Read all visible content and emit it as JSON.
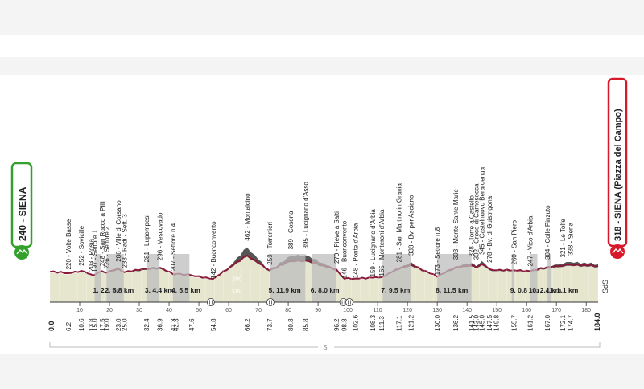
{
  "chart_data": {
    "type": "area",
    "title": "",
    "xlabel": "",
    "ylabel": "",
    "xlim": [
      0,
      184
    ],
    "ylim": [
      0,
      600
    ],
    "x_axis_ticks": [
      10,
      20,
      30,
      40,
      50,
      60,
      70,
      80,
      90,
      100,
      110,
      120,
      130,
      140,
      150,
      160,
      170,
      180
    ],
    "y_axis_ticks": [
      100,
      200
    ],
    "start": {
      "label": "240 - SIENA",
      "km": "0.0"
    },
    "finish": {
      "label": "318 - SIENA (Piazza del Campo)",
      "km": "184.0"
    },
    "sds_label": "SdS",
    "si_label": "SI",
    "points": [
      {
        "km": 0.0,
        "alt": 240
      },
      {
        "km": 6.2,
        "alt": 220,
        "label": "220 - Volte Basse",
        "distance": "6.2"
      },
      {
        "km": 10.6,
        "alt": 252,
        "label": "252 - Sovicille",
        "distance": "10.6"
      },
      {
        "km": 13.8,
        "alt": 203,
        "label": "203 - Rosia",
        "distance": "13.8"
      },
      {
        "km": 15.0,
        "alt": 197,
        "label": "197 - Settore 1",
        "distance": "15.0"
      },
      {
        "km": 17.5,
        "alt": 248,
        "label": "248 - San Rocco a Pilli",
        "distance": "17.5"
      },
      {
        "km": 19.0,
        "alt": 226,
        "label": "226 - Settore 2",
        "distance": "19.0"
      },
      {
        "km": 23.0,
        "alt": 286,
        "label": "286 - Ville di Corsano",
        "distance": "23.0"
      },
      {
        "km": 25.0,
        "alt": 233,
        "label": "233 - Radi - Sett. 3",
        "distance": "25.0"
      },
      {
        "km": 32.4,
        "alt": 281,
        "label": "281 - Lupompesi",
        "distance": "32.4"
      },
      {
        "km": 36.9,
        "alt": 296,
        "label": "296 - Vescovado",
        "distance": "36.9"
      },
      {
        "km": 41.3,
        "alt": 207,
        "label": "207 - Settore n.4",
        "distance": "41.3"
      },
      {
        "km": 42.3,
        "alt": 210
      },
      {
        "km": 47.6,
        "alt": 190
      },
      {
        "km": 54.8,
        "alt": 142,
        "label": "142 - Buonconvento",
        "distance": "54.8"
      },
      {
        "km": 66.2,
        "alt": 462,
        "label": "462 - Montalcino",
        "distance": "66.2"
      },
      {
        "km": 73.7,
        "alt": 259,
        "label": "259 - Torrenieri",
        "distance": "73.7"
      },
      {
        "km": 80.8,
        "alt": 389,
        "label": "389 - Cosona",
        "distance": "80.8"
      },
      {
        "km": 85.8,
        "alt": 395,
        "label": "395 - Lucignano d'Asso",
        "distance": "85.8"
      },
      {
        "km": 96.2,
        "alt": 270,
        "label": "270 - Pieve a Salti",
        "distance": "96.2"
      },
      {
        "km": 98.8,
        "alt": 146,
        "label": "146 - Buonconvento",
        "distance": "98.8"
      },
      {
        "km": 102.6,
        "alt": 148,
        "label": "148 - Ponte d'Arbia",
        "distance": "102.6"
      },
      {
        "km": 108.3,
        "alt": 159,
        "label": "159 - Lucignano d'Arbia",
        "distance": "108.3"
      },
      {
        "km": 111.3,
        "alt": 165,
        "label": "165 - Monteroni d'Arbia",
        "distance": "111.3"
      },
      {
        "km": 117.1,
        "alt": 281,
        "label": "281 - San Martino in Grania",
        "distance": "117.1"
      },
      {
        "km": 121.2,
        "alt": 338,
        "label": "338 - Bv. per Asciano",
        "distance": "121.2"
      },
      {
        "km": 130.0,
        "alt": 173,
        "label": "173 - Settore n.8",
        "distance": "130.0"
      },
      {
        "km": 136.2,
        "alt": 303,
        "label": "303 - Monte Sante Marie",
        "distance": "136.2"
      },
      {
        "km": 141.5,
        "alt": 328,
        "label": "328 - Torre a Castello",
        "distance": "141.5"
      },
      {
        "km": 143.0,
        "alt": 302,
        "label": "302 - Croce di Camesecca",
        "distance": "143.0"
      },
      {
        "km": 145.0,
        "alt": 345,
        "label": "345 - Castelnuovo Berardenga",
        "distance": "145.0"
      },
      {
        "km": 147.5,
        "alt": 278,
        "label": "278 - Bv. di Guistrigona",
        "distance": "147.5"
      },
      {
        "km": 149.8,
        "alt": 260
      },
      {
        "km": 155.7,
        "alt": 260,
        "label": "260 - San Piero",
        "distance": "155.7"
      },
      {
        "km": 161.2,
        "alt": 247,
        "label": "247 - Vico d'Arbia",
        "distance": "161.2"
      },
      {
        "km": 167.0,
        "alt": 304,
        "label": "304 - Colle Pinzuto",
        "distance": "167.0"
      },
      {
        "km": 172.1,
        "alt": 321,
        "label": "321 - Le Tolfe",
        "distance": "172.1"
      },
      {
        "km": 174.7,
        "alt": 338,
        "label": "338 - Siena",
        "distance": "174.7"
      },
      {
        "km": 184.0,
        "alt": 318
      }
    ],
    "extra_distances": [
      "42.3",
      "47.6",
      "149.8"
    ],
    "sectors": [
      {
        "label": "1. 2.1 km",
        "start": 15.0,
        "end": 17.1
      },
      {
        "label": "2. 5.8 km",
        "start": 19.0,
        "end": 24.8
      },
      {
        "label": "3. 4.4 km",
        "start": 32.4,
        "end": 36.8
      },
      {
        "label": "4. 5.5 km",
        "start": 41.3,
        "end": 46.8
      },
      {
        "label": "5. 11.9 km",
        "start": 73.9,
        "end": 85.8
      },
      {
        "label": "6. 8.0 km",
        "start": 88.0,
        "end": 96.0
      },
      {
        "label": "7. 9.5 km",
        "start": 111.7,
        "end": 121.2
      },
      {
        "label": "8. 11.5 km",
        "start": 130.0,
        "end": 141.5
      },
      {
        "label": "9. 0.8 km",
        "start": 155.0,
        "end": 155.8
      },
      {
        "label": "10. 2.4 km",
        "start": 161.2,
        "end": 163.6
      },
      {
        "label": "11. 1.1 km",
        "start": 167.0,
        "end": 168.1
      }
    ],
    "feed_zones": [
      54.0,
      74.0,
      98.5,
      100.5
    ]
  },
  "colors": {
    "profile_dark": "#555555",
    "profile_light": "#e6e6cf",
    "strade_bianche_band": "#bdbdbd",
    "gravel_line": "#8a1a3a",
    "start_green": "#33a02c",
    "finish_red": "#d7192a",
    "band": "#f4f4f4"
  }
}
